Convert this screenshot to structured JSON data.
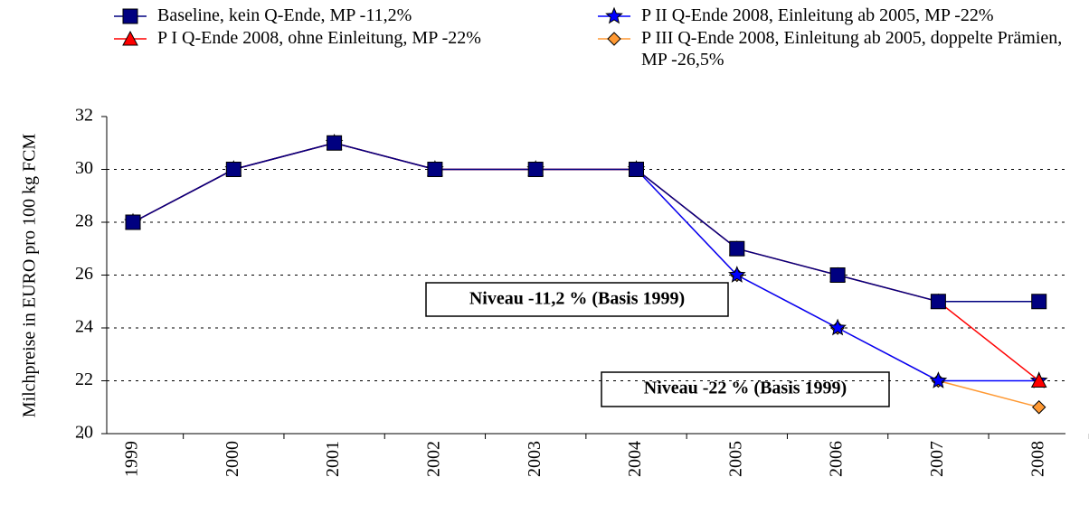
{
  "chart_data": {
    "type": "line",
    "y_label": "Milchpreise in EURO pro 100 kg FCM",
    "categories": [
      "1999",
      "2000",
      "2001",
      "2002",
      "2003",
      "2004",
      "2005",
      "2006",
      "2007",
      "2008"
    ],
    "ylim": [
      20,
      32
    ],
    "yticks": [
      20,
      22,
      24,
      26,
      28,
      30,
      32
    ],
    "grid": true,
    "series": [
      {
        "name": "Baseline, kein Q-Ende, MP -11,2%",
        "color": "#000080",
        "marker": "square",
        "values": [
          28,
          30,
          31,
          30,
          30,
          30,
          27,
          26,
          25,
          25
        ]
      },
      {
        "name": "P I Q-Ende 2008, ohne Einleitung, MP -22%",
        "color": "#ff0000",
        "marker": "triangle",
        "values": [
          28,
          30,
          31,
          30,
          30,
          30,
          27,
          26,
          25,
          22
        ]
      },
      {
        "name": "P II Q-Ende 2008, Einleitung ab 2005, MP -22%",
        "color": "#0000ff",
        "marker": "star",
        "values": [
          28,
          30,
          31,
          30,
          30,
          30,
          26,
          24,
          22,
          22
        ]
      },
      {
        "name": "P III Q-Ende 2008, Einleitung ab 2005, doppelte Prämien, MP -26,5%",
        "color": "#ff9933",
        "marker": "diamond",
        "values": [
          28,
          30,
          31,
          30,
          30,
          30,
          26,
          24,
          22,
          21
        ]
      }
    ],
    "annotations": [
      "Niveau -11,2 % (Basis 1999)",
      "Niveau -22 % (Basis 1999)"
    ]
  }
}
